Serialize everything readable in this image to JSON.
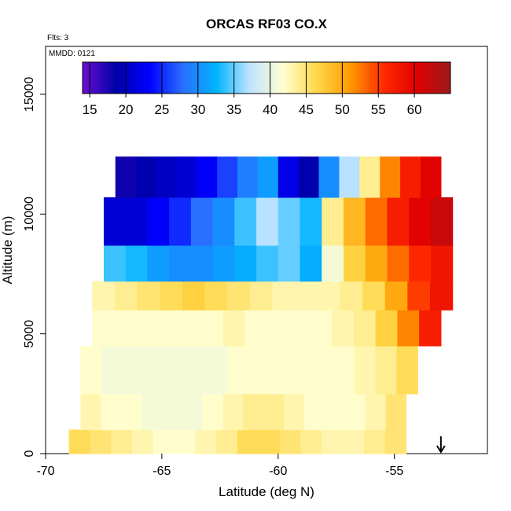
{
  "chart_data": {
    "type": "heatmap",
    "title": "ORCAS RF03 CO.X",
    "xlabel": "Latitude (deg N)",
    "ylabel": "Altitude (m)",
    "xlim": [
      -70,
      -51
    ],
    "ylim": [
      0,
      17000
    ],
    "x_ticks": [
      -70,
      -65,
      -60,
      -55
    ],
    "y_ticks": [
      0,
      5000,
      10000,
      15000
    ],
    "annotations": {
      "flights": "Flts: 3",
      "date": "MMDD: 0121"
    },
    "colorbar": {
      "ticks": [
        15,
        20,
        25,
        30,
        35,
        40,
        45,
        50,
        55,
        60
      ],
      "range": [
        14,
        65
      ],
      "colors": [
        "#6a0fd2",
        "#0000a8",
        "#0000ff",
        "#2a6fff",
        "#00b4ff",
        "#bfe4ff",
        "#ffffd0",
        "#ffd84a",
        "#ff9a00",
        "#ff2a00",
        "#e00000",
        "#9b1a1a"
      ]
    },
    "arrow_latitude": -53,
    "field": {
      "description_units": "CO mixing ratio (ppbv) by latitude and altitude",
      "rows": [
        {
          "alt_range": [
            0,
            1000
          ],
          "lat_range": [
            -69,
            -54.5
          ],
          "values": [
            46,
            45,
            44,
            43,
            42,
            42,
            43,
            44,
            46,
            46,
            45,
            44,
            43,
            43,
            44,
            45
          ]
        },
        {
          "alt_range": [
            1000,
            2500
          ],
          "lat_range": [
            -68.5,
            -54.5
          ],
          "values": [
            43,
            42,
            42,
            41,
            41,
            41,
            42,
            43,
            44,
            44,
            43,
            42,
            42,
            42,
            43,
            45
          ]
        },
        {
          "alt_range": [
            2500,
            4500
          ],
          "lat_range": [
            -68.5,
            -54
          ],
          "values": [
            42,
            41,
            41,
            41,
            41,
            41,
            41,
            42,
            42,
            42,
            42,
            42,
            42,
            43,
            44,
            46
          ]
        },
        {
          "alt_range": [
            4500,
            6000
          ],
          "lat_range": [
            -68,
            -53
          ],
          "values": [
            42,
            42,
            42,
            42,
            42,
            42,
            43,
            42,
            42,
            42,
            42,
            43,
            44,
            47,
            52,
            57
          ]
        },
        {
          "alt_range": [
            6000,
            7200
          ],
          "lat_range": [
            -68,
            -52.5
          ],
          "values": [
            43,
            44,
            45,
            46,
            47,
            46,
            45,
            44,
            43,
            43,
            43,
            44,
            46,
            50,
            55,
            58
          ]
        },
        {
          "alt_range": [
            7200,
            8700
          ],
          "lat_range": [
            -67.5,
            -52.5
          ],
          "values": [
            34,
            33,
            31,
            30,
            30,
            31,
            32,
            34,
            35,
            32,
            41,
            47,
            50,
            53,
            56,
            58
          ]
        },
        {
          "alt_range": [
            8700,
            10700
          ],
          "lat_range": [
            -67.5,
            -52.5
          ],
          "values": [
            21,
            21,
            23,
            25,
            28,
            30,
            34,
            37,
            35,
            33,
            44,
            49,
            53,
            57,
            60,
            62
          ]
        },
        {
          "alt_range": [
            10700,
            12400
          ],
          "lat_range": [
            -67,
            -53
          ],
          "values": [
            18,
            19,
            20,
            21,
            23,
            26,
            29,
            31,
            22,
            19,
            30,
            37,
            44,
            52,
            57,
            60
          ]
        }
      ]
    }
  }
}
